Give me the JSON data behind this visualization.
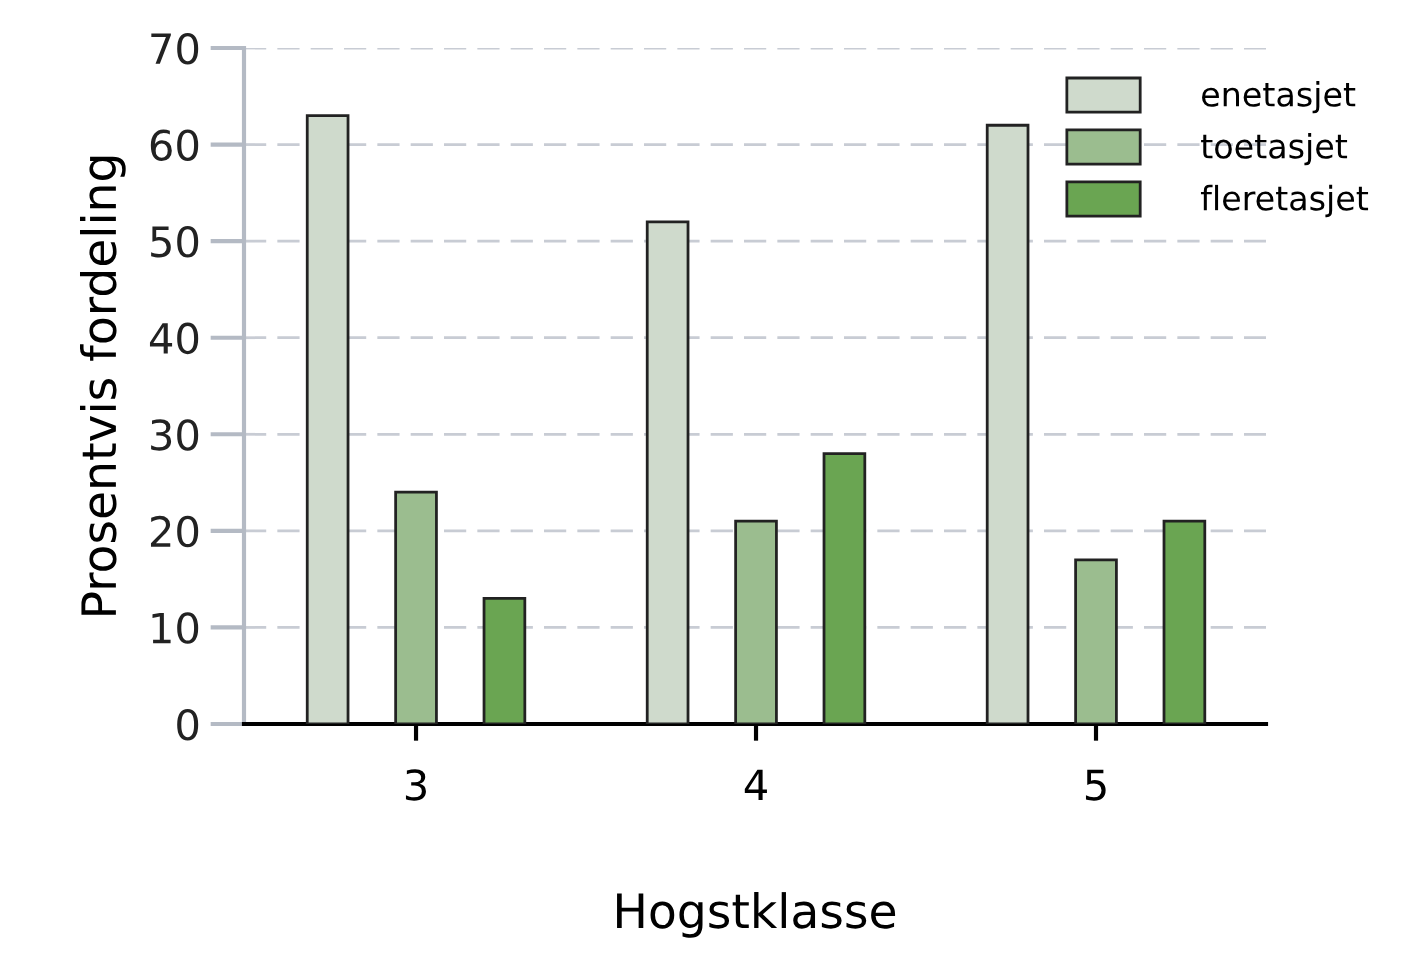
{
  "chart_data": {
    "type": "bar",
    "xlabel": "Hogstklasse",
    "ylabel": "Prosentvis fordeling",
    "categories": [
      "3",
      "4",
      "5"
    ],
    "series": [
      {
        "name": "enetasjet",
        "color": "#cfdacc",
        "values": [
          63,
          52,
          62
        ]
      },
      {
        "name": "toetasjet",
        "color": "#9bbd8f",
        "values": [
          24,
          21,
          17
        ]
      },
      {
        "name": "fleretasjet",
        "color": "#6aa552",
        "values": [
          13,
          28,
          21
        ]
      }
    ],
    "ylim": [
      0,
      70
    ],
    "yticks": [
      0,
      10,
      20,
      30,
      40,
      50,
      60,
      70
    ],
    "grid": "y",
    "legend": "top right"
  }
}
